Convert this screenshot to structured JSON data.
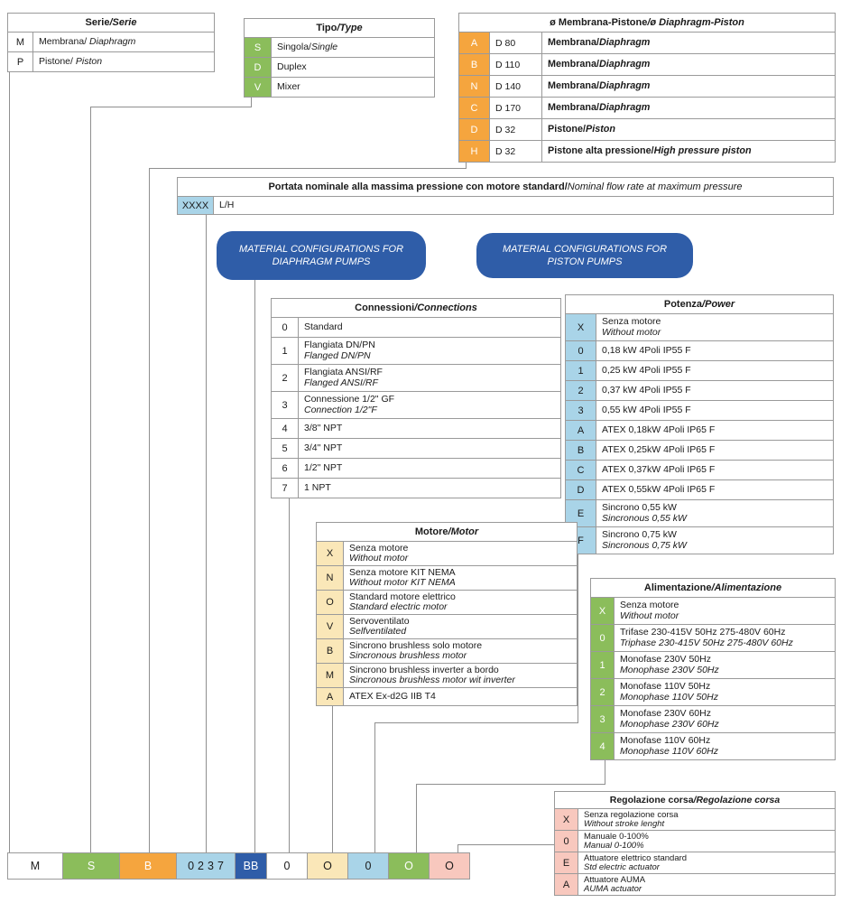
{
  "palette": {
    "green": "#8BBD5B",
    "orange": "#F5A53E",
    "lightblue": "#A9D4E8",
    "darkblue": "#2F5DA8",
    "cream": "#FAE7B8",
    "pink": "#F8C8BE"
  },
  "tables": {
    "serie": {
      "title_it": "Serie",
      "title_en": "/Serie",
      "rows": [
        {
          "code": "M",
          "l1it": "Membrana/ ",
          "l1en": "Diaphragm"
        },
        {
          "code": "P",
          "l1it": "Pistone/ ",
          "l1en": "Piston"
        }
      ]
    },
    "tipo": {
      "title_it": "Tipo",
      "title_en": "/Type",
      "rows": [
        {
          "code": "S",
          "l1it": "Singola/",
          "l1en": "Single"
        },
        {
          "code": "D",
          "l1it": "Duplex"
        },
        {
          "code": "V",
          "l1it": "Mixer"
        }
      ]
    },
    "membrana": {
      "title_it": "ø Membrana-Pistone",
      "title_en": "/ø Diaphragm-Piston",
      "rows": [
        {
          "code": "A",
          "size": "D 80",
          "l1it": "Membrana/",
          "l1en": "Diaphragm"
        },
        {
          "code": "B",
          "size": "D 110",
          "l1it": "Membrana/",
          "l1en": "Diaphragm"
        },
        {
          "code": "N",
          "size": "D 140",
          "l1it": "Membrana/",
          "l1en": "Diaphragm"
        },
        {
          "code": "C",
          "size": "D 170",
          "l1it": "Membrana/",
          "l1en": "Diaphragm"
        },
        {
          "code": "D",
          "size": "D 32",
          "l1it": "Pistone/",
          "l1en": "Piston"
        },
        {
          "code": "H",
          "size": "D 32",
          "l1it": "Pistone alta pressione/",
          "l1en": "High pressure piston"
        }
      ]
    },
    "portata": {
      "title_it": "Portata nominale alla massima pressione con motore standard/",
      "title_en": " Nominal flow rate at maximum pressure",
      "rows": [
        {
          "code": "XXXX",
          "l1it": "L/H"
        }
      ]
    },
    "connessioni": {
      "title_it": "Connessioni",
      "title_en": "/Connections",
      "rows": [
        {
          "code": "0",
          "l1it": "Standard"
        },
        {
          "code": "1",
          "l1it": "Flangiata DN/PN",
          "l2": "Flanged DN/PN"
        },
        {
          "code": "2",
          "l1it": "Flangiata ANSI/RF",
          "l2": "Flanged ANSI/RF"
        },
        {
          "code": "3",
          "l1it": "Connessione 1/2\" GF",
          "l2": "Connection 1/2\"F"
        },
        {
          "code": "4",
          "l1it": "3/8\" NPT"
        },
        {
          "code": "5",
          "l1it": "3/4\" NPT"
        },
        {
          "code": "6",
          "l1it": "1/2\" NPT"
        },
        {
          "code": "7",
          "l1it": "1 NPT"
        }
      ]
    },
    "potenza": {
      "title_it": "Potenza",
      "title_en": "/Power",
      "rows": [
        {
          "code": "X",
          "l1it": "Senza motore",
          "l2": "Without motor"
        },
        {
          "code": "0",
          "l1it": "0,18 kW 4Poli IP55 F"
        },
        {
          "code": "1",
          "l1it": "0,25 kW 4Poli IP55 F"
        },
        {
          "code": "2",
          "l1it": "0,37 kW 4Poli IP55 F"
        },
        {
          "code": "3",
          "l1it": "0,55 kW 4Poli IP55 F"
        },
        {
          "code": "A",
          "l1it": "ATEX 0,18kW 4Poli IP65 F"
        },
        {
          "code": "B",
          "l1it": "ATEX 0,25kW 4Poli IP65 F"
        },
        {
          "code": "C",
          "l1it": "ATEX 0,37kW 4Poli IP65 F"
        },
        {
          "code": "D",
          "l1it": "ATEX 0,55kW 4Poli IP65 F"
        },
        {
          "code": "E",
          "l1it": "Sincrono 0,55 kW",
          "l2": "Sincronous 0,55 kW"
        },
        {
          "code": "F",
          "l1it": "Sincrono 0,75 kW",
          "l2": "Sincronous 0,75 kW"
        }
      ]
    },
    "motore": {
      "title_it": "Motore",
      "title_en": "/Motor",
      "rows": [
        {
          "code": "X",
          "l1it": "Senza motore",
          "l2": "Without motor"
        },
        {
          "code": "N",
          "l1it": "Senza motore KIT NEMA",
          "l2": "Without motor KIT NEMA"
        },
        {
          "code": "O",
          "l1it": "Standard motore elettrico",
          "l2": "Standard electric motor"
        },
        {
          "code": "V",
          "l1it": "Servoventilato",
          "l2": "Selfventilated"
        },
        {
          "code": "B",
          "l1it": "Sincrono brushless solo motore",
          "l2": "Sincronous brushless motor"
        },
        {
          "code": "M",
          "l1it": "Sincrono brushless inverter a bordo",
          "l2": "Sincronous brushless motor wit inverter"
        },
        {
          "code": "A",
          "l1it": "ATEX Ex-d2G IIB T4"
        }
      ]
    },
    "alimentazione": {
      "title_it": "Alimentazione",
      "title_en": "/Alimentazione",
      "rows": [
        {
          "code": "X",
          "l1it": "Senza motore",
          "l2": "Without motor"
        },
        {
          "code": "0",
          "l1it": "Trifase 230-415V 50Hz 275-480V 60Hz",
          "l2": "Triphase 230-415V 50Hz 275-480V 60Hz"
        },
        {
          "code": "1",
          "l1it": "Monofase 230V 50Hz",
          "l2": "Monophase 230V 50Hz"
        },
        {
          "code": "2",
          "l1it": "Monofase 110V 50Hz",
          "l2": "Monophase 110V 50Hz"
        },
        {
          "code": "3",
          "l1it": "Monofase 230V 60Hz",
          "l2": "Monophase 230V 60Hz"
        },
        {
          "code": "4",
          "l1it": "Monofase 110V 60Hz",
          "l2": "Monophase 110V 60Hz"
        }
      ]
    },
    "regolazione": {
      "title_it": "Regolazione corsa",
      "title_en": "/Regolazione corsa",
      "rows": [
        {
          "code": "X",
          "l1it": "Senza regolazione corsa",
          "l2": "Without stroke lenght"
        },
        {
          "code": "0",
          "l1it": "Manuale 0-100%",
          "l2": "Manual 0-100%"
        },
        {
          "code": "E",
          "l1it": "Attuatore elettrico standard",
          "l2": "Std electric actuator"
        },
        {
          "code": "A",
          "l1it": "Attuatore AUMA",
          "l2": "AUMA actuator"
        }
      ]
    }
  },
  "callouts": {
    "diaphragm": "MATERIAL CONFIGURATIONS FOR DIAPHRAGM PUMPS",
    "piston": "MATERIAL CONFIGURATIONS FOR PISTON PUMPS"
  },
  "code_row": [
    {
      "text": "M",
      "color": "white"
    },
    {
      "text": "S",
      "color": "green"
    },
    {
      "text": "B",
      "color": "orange"
    },
    {
      "text": "0237",
      "color": "lightblue",
      "spaced": true
    },
    {
      "text": "BB",
      "color": "darkblue"
    },
    {
      "text": "0",
      "color": "white"
    },
    {
      "text": "O",
      "color": "cream"
    },
    {
      "text": "0",
      "color": "lightblue"
    },
    {
      "text": "O",
      "color": "green"
    },
    {
      "text": "O",
      "color": "pink"
    }
  ]
}
